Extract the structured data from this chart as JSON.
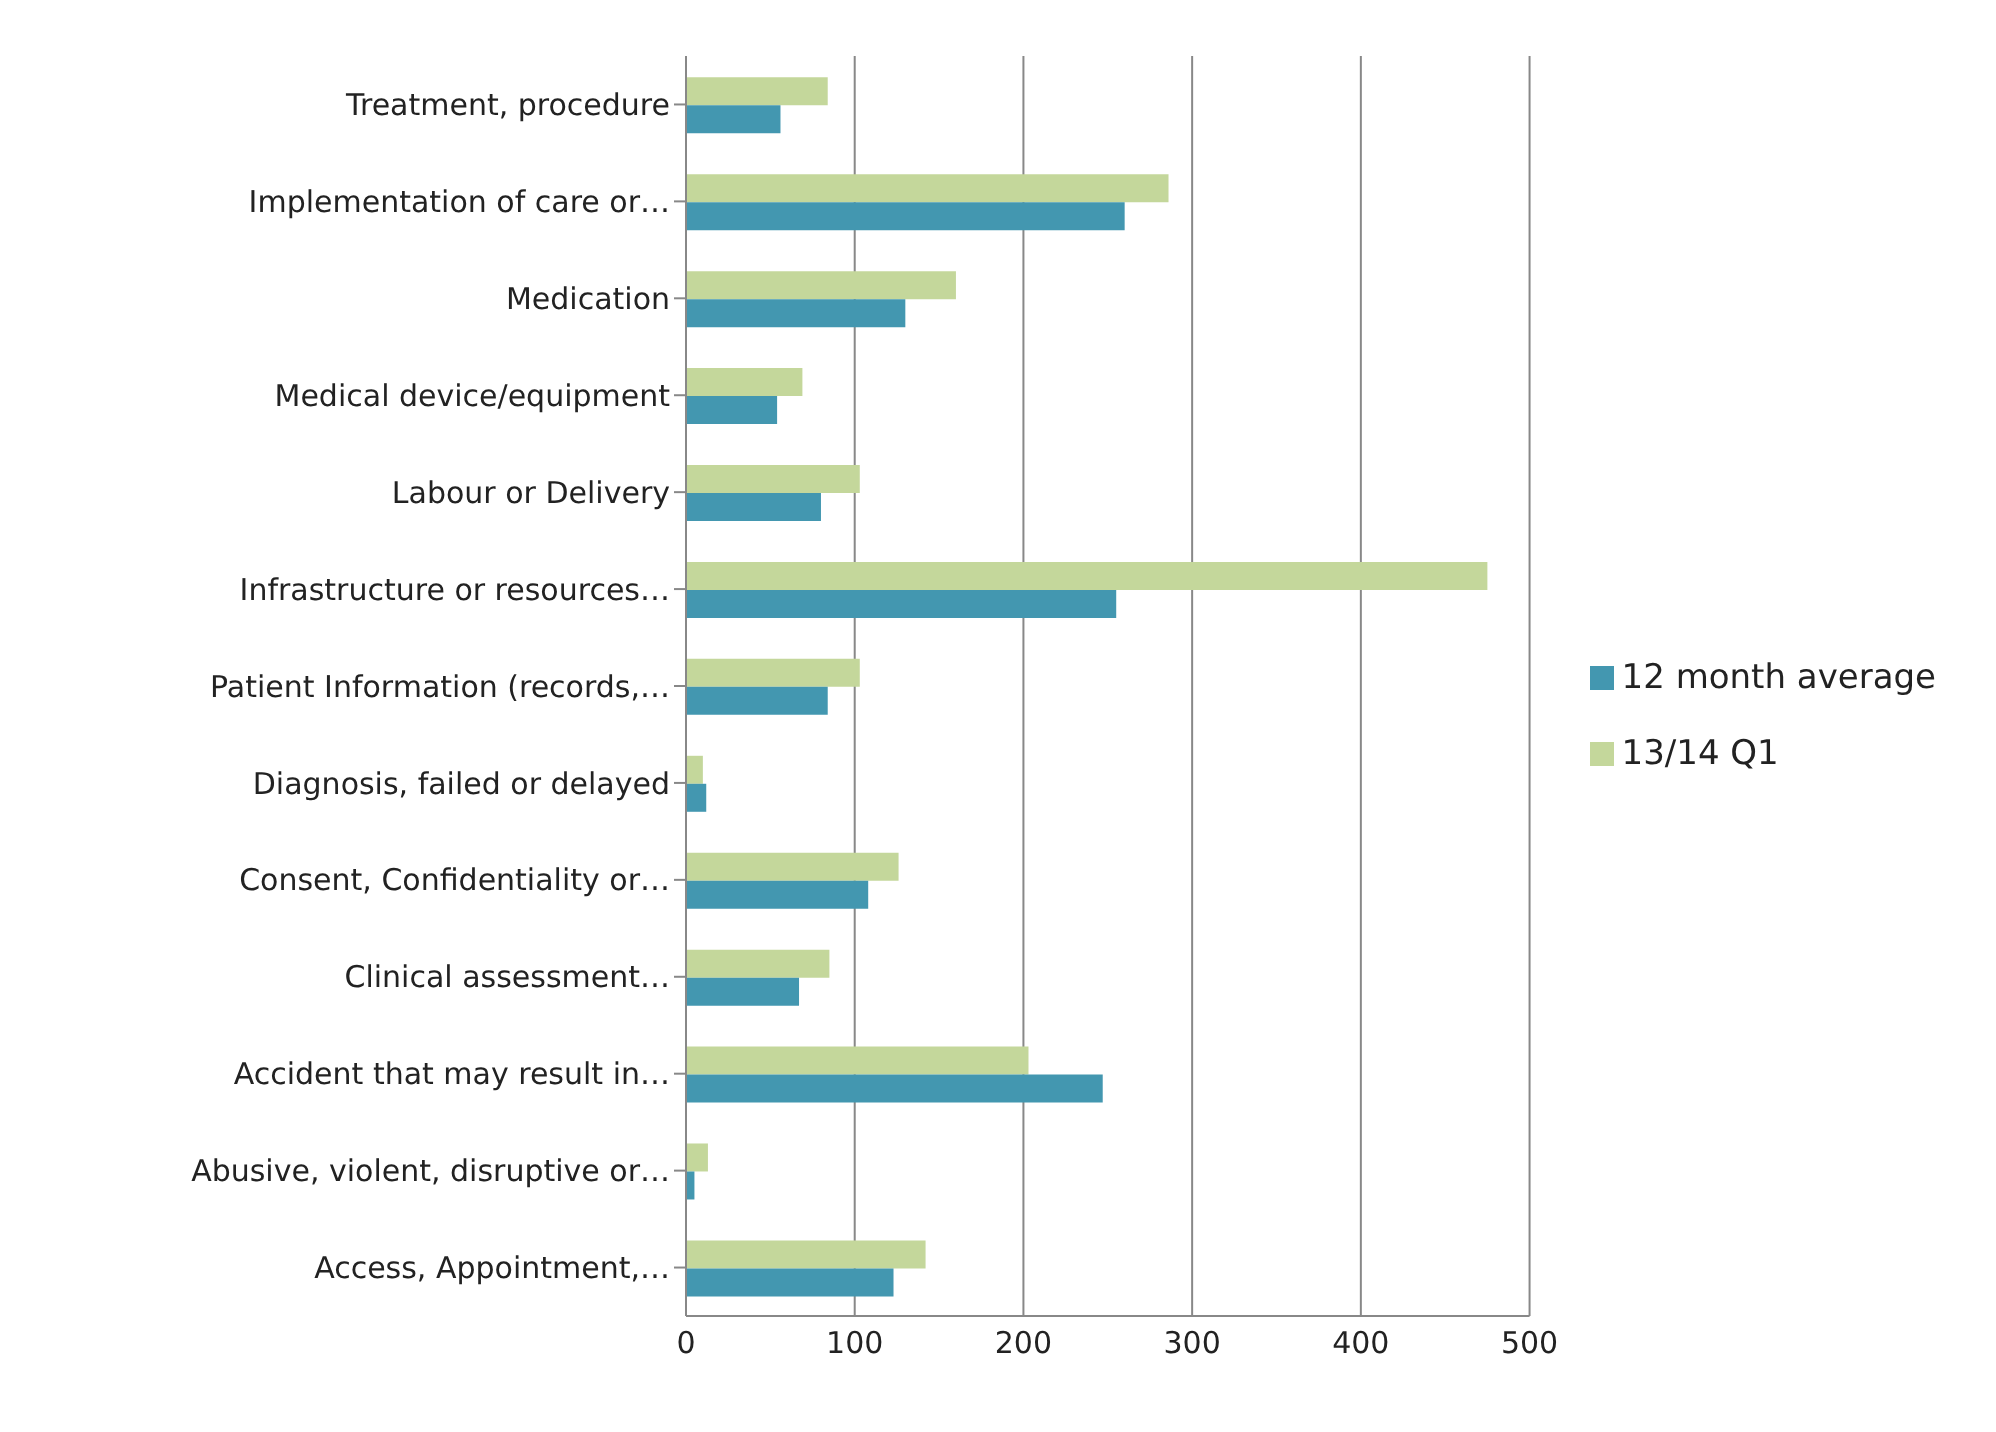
{
  "chart_data": {
    "type": "bar",
    "orientation": "horizontal",
    "categories": [
      "Treatment, procedure",
      "Implementation of care or…",
      "Medication",
      "Medical device/equipment",
      "Labour or Delivery",
      "Infrastructure or resources…",
      "Patient Information (records,…",
      "Diagnosis, failed or delayed",
      "Consent, Confidentiality or…",
      "Clinical assessment…",
      "Accident that may result in…",
      "Abusive, violent, disruptive or…",
      "Access, Appointment,…"
    ],
    "series": [
      {
        "name": "13/14 Q1",
        "color": "#c4d79b",
        "values": [
          84,
          286,
          160,
          69,
          103,
          475,
          103,
          10,
          126,
          85,
          203,
          13,
          142
        ]
      },
      {
        "name": "12 month average",
        "color": "#4397b0",
        "values": [
          56,
          260,
          130,
          54,
          80,
          255,
          84,
          12,
          108,
          67,
          247,
          5,
          123
        ]
      }
    ],
    "xlim": [
      0,
      500
    ],
    "xticks": [
      0,
      100,
      200,
      300,
      400,
      500
    ],
    "grid": "x",
    "legend": "right"
  }
}
